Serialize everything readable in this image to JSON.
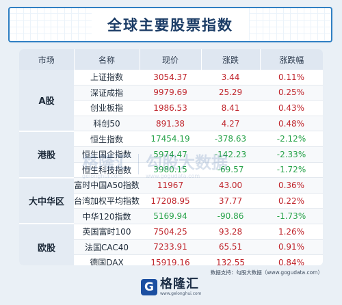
{
  "title": "全球主要股票指数",
  "headers": [
    "市场",
    "名称",
    "现价",
    "涨跌",
    "涨跌幅"
  ],
  "groups": [
    {
      "market": "A股",
      "rows": [
        {
          "name": "上证指数",
          "price": "3054.37",
          "change": "3.44",
          "pct": "0.11%",
          "dir": "up"
        },
        {
          "name": "深证成指",
          "price": "9979.69",
          "change": "25.29",
          "pct": "0.25%",
          "dir": "up"
        },
        {
          "name": "创业板指",
          "price": "1986.53",
          "change": "8.41",
          "pct": "0.43%",
          "dir": "up"
        },
        {
          "name": "科创50",
          "price": "891.38",
          "change": "4.27",
          "pct": "0.48%",
          "dir": "up"
        }
      ]
    },
    {
      "market": "港股",
      "rows": [
        {
          "name": "恒生指数",
          "price": "17454.19",
          "change": "-378.63",
          "pct": "-2.12%",
          "dir": "down"
        },
        {
          "name": "恒生国企指数",
          "price": "5974.47",
          "change": "-142.23",
          "pct": "-2.33%",
          "dir": "down"
        },
        {
          "name": "恒生科技指数",
          "price": "3980.15",
          "change": "-69.57",
          "pct": "-1.72%",
          "dir": "down"
        }
      ]
    },
    {
      "market": "大中华区",
      "rows": [
        {
          "name": "富时中国A50指数",
          "price": "11967",
          "change": "43.00",
          "pct": "0.36%",
          "dir": "up"
        },
        {
          "name": "台湾加权平均指数",
          "price": "17208.95",
          "change": "37.77",
          "pct": "0.22%",
          "dir": "up"
        },
        {
          "name": "中华120指数",
          "price": "5169.94",
          "change": "-90.86",
          "pct": "-1.73%",
          "dir": "down"
        }
      ]
    },
    {
      "market": "欧股",
      "rows": [
        {
          "name": "英国富时100",
          "price": "7504.25",
          "change": "93.28",
          "pct": "1.26%",
          "dir": "up"
        },
        {
          "name": "法国CAC40",
          "price": "7233.91",
          "change": "65.51",
          "pct": "0.91%",
          "dir": "up"
        },
        {
          "name": "德国DAX",
          "price": "15919.16",
          "change": "132.55",
          "pct": "0.84%",
          "dir": "up"
        }
      ]
    }
  ],
  "watermark": {
    "brand": "格隆汇",
    "site": "gelonghui.com",
    "brand2": "勾股大数据",
    "site2": "www.gogudata.com"
  },
  "source": "数据支持：勾股大数据（www.gogudata.com）",
  "logo": {
    "mark": "G",
    "name": "格隆汇",
    "url": "www.gelonghui.com"
  },
  "colors": {
    "up": "#c0262d",
    "down": "#28a34a",
    "accent": "#2f7fc3"
  }
}
